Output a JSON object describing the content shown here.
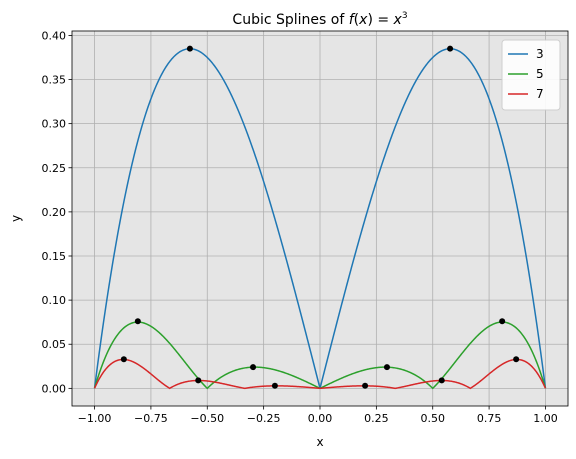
{
  "chart_data": {
    "type": "line",
    "title_prefix": "Cubic Splines of ",
    "title_math_f": "f",
    "title_math_x": "x",
    "title_math_eq": ") = ",
    "title_math_open": "(",
    "title_math_base": "x",
    "title_math_exp": "3",
    "xlabel": "x",
    "ylabel": "y",
    "xlim": [
      -1.1,
      1.1
    ],
    "ylim": [
      -0.02,
      0.405
    ],
    "xticks": [
      -1.0,
      -0.75,
      -0.5,
      -0.25,
      0.0,
      0.25,
      0.5,
      0.75,
      1.0
    ],
    "xtick_labels": [
      "−1.00",
      "−0.75",
      "−0.50",
      "−0.25",
      "0.00",
      "0.25",
      "0.50",
      "0.75",
      "1.00"
    ],
    "yticks": [
      0.0,
      0.05,
      0.1,
      0.15,
      0.2,
      0.25,
      0.3,
      0.35,
      0.4
    ],
    "ytick_labels": [
      "0.00",
      "0.05",
      "0.10",
      "0.15",
      "0.20",
      "0.25",
      "0.30",
      "0.35",
      "0.40"
    ],
    "grid": true,
    "legend_position": "top-right",
    "background": "#e5e5e5",
    "series": [
      {
        "name": "3",
        "color": "#1f77b4",
        "knots": [
          -1.0,
          0.0,
          1.0
        ]
      },
      {
        "name": "5",
        "color": "#2ca02c",
        "knots": [
          -1.0,
          -0.5,
          0.0,
          0.5,
          1.0
        ]
      },
      {
        "name": "7",
        "color": "#d62728",
        "knots": [
          -1.0,
          -0.6667,
          -0.3333,
          0.0,
          0.3333,
          0.6667,
          1.0
        ]
      }
    ],
    "markers": {
      "color": "#000000",
      "points": [
        [
          -0.577,
          0.385
        ],
        [
          0.577,
          0.385
        ],
        [
          -0.808,
          0.076
        ],
        [
          -0.297,
          0.024
        ],
        [
          0.297,
          0.024
        ],
        [
          0.808,
          0.076
        ],
        [
          -0.87,
          0.033
        ],
        [
          -0.54,
          0.009
        ],
        [
          -0.2,
          0.003
        ],
        [
          0.2,
          0.003
        ],
        [
          0.54,
          0.009
        ],
        [
          0.87,
          0.033
        ]
      ]
    }
  }
}
